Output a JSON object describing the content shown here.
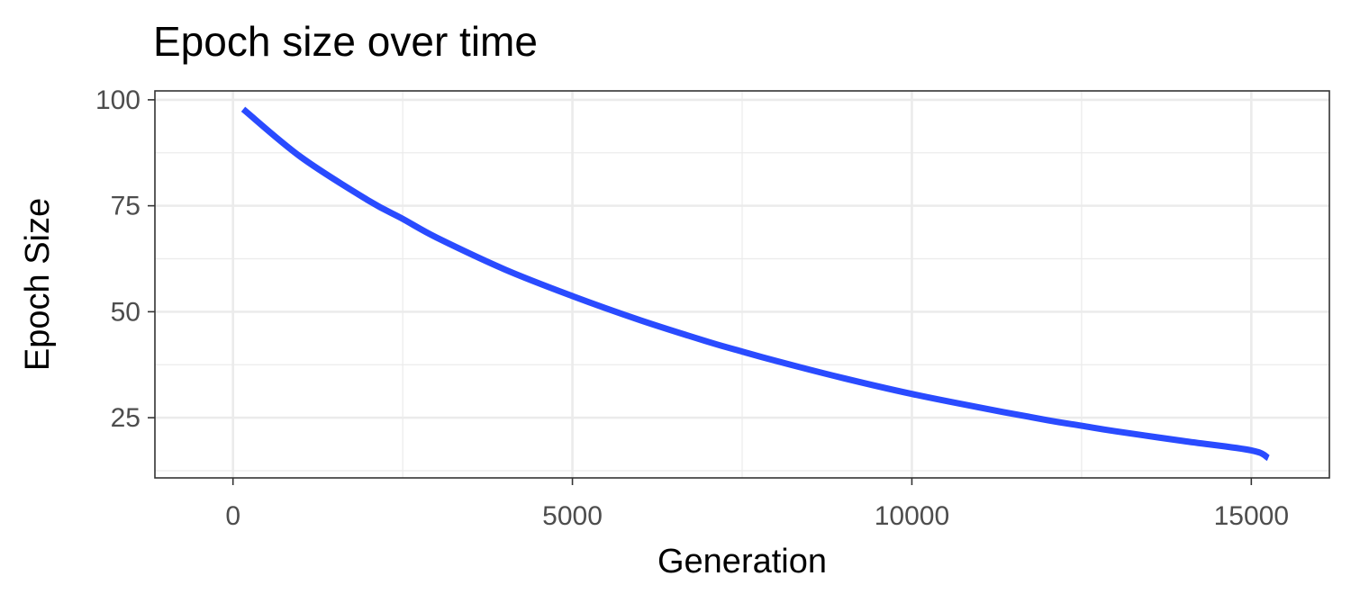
{
  "chart_data": {
    "type": "line",
    "title": "Epoch size over time",
    "xlabel": "Generation",
    "ylabel": "Epoch Size",
    "xlim": [
      -1150,
      16150
    ],
    "ylim": [
      10.8,
      102.1
    ],
    "x_ticks": [
      0,
      5000,
      10000,
      15000
    ],
    "x_tick_labels": [
      "0",
      "5000",
      "10000",
      "15000"
    ],
    "x_minor_ticks": [
      2500,
      7500,
      12500
    ],
    "y_ticks": [
      25,
      50,
      75,
      100
    ],
    "y_tick_labels": [
      "25",
      "50",
      "75",
      "100"
    ],
    "y_minor_ticks": [
      12.5,
      37.5,
      62.5,
      87.5
    ],
    "grid": true,
    "legend": "none",
    "colors": {
      "line": "#2a4bff",
      "grid": "#ebebeb",
      "panel_border": "#333333",
      "tick_label": "#4d4d4d"
    },
    "series": [
      {
        "x": [
          150,
          1000,
          2000,
          2500,
          3000,
          4000,
          5000,
          6000,
          7000,
          7500,
          8000,
          9000,
          10000,
          11000,
          12000,
          12500,
          13000,
          14000,
          15000,
          15250
        ],
        "values": [
          97.8,
          86.5,
          76.2,
          71.9,
          67.5,
          60.0,
          53.7,
          48.0,
          42.9,
          40.6,
          38.4,
          34.3,
          30.6,
          27.4,
          24.4,
          23.1,
          21.8,
          19.5,
          17.3,
          15.5
        ]
      }
    ]
  }
}
